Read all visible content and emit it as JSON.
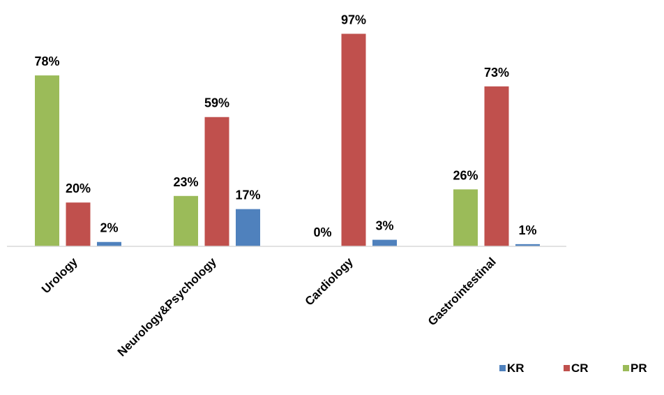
{
  "chart_data": {
    "type": "bar",
    "categories": [
      "Urology",
      "Neurology&Psychology",
      "Cardiology",
      "Gastrointestinal"
    ],
    "series": [
      {
        "name": "PR",
        "color": "#9BBB59",
        "values": [
          78,
          23,
          0,
          26
        ],
        "labels": [
          "78%",
          "23%",
          "0%",
          "26%"
        ]
      },
      {
        "name": "CR",
        "color": "#C0504D",
        "values": [
          20,
          59,
          97,
          73
        ],
        "labels": [
          "20%",
          "59%",
          "97%",
          "73%"
        ]
      },
      {
        "name": "KR",
        "color": "#4F81BD",
        "values": [
          2,
          17,
          3,
          1
        ],
        "labels": [
          "2%",
          "17%",
          "3%",
          "1%"
        ]
      }
    ],
    "legend": {
      "position": "bottom-right",
      "order": [
        "KR",
        "CR",
        "PR"
      ]
    },
    "ylim": [
      0,
      100
    ],
    "grid": false,
    "title": "",
    "xlabel": "",
    "ylabel": ""
  }
}
